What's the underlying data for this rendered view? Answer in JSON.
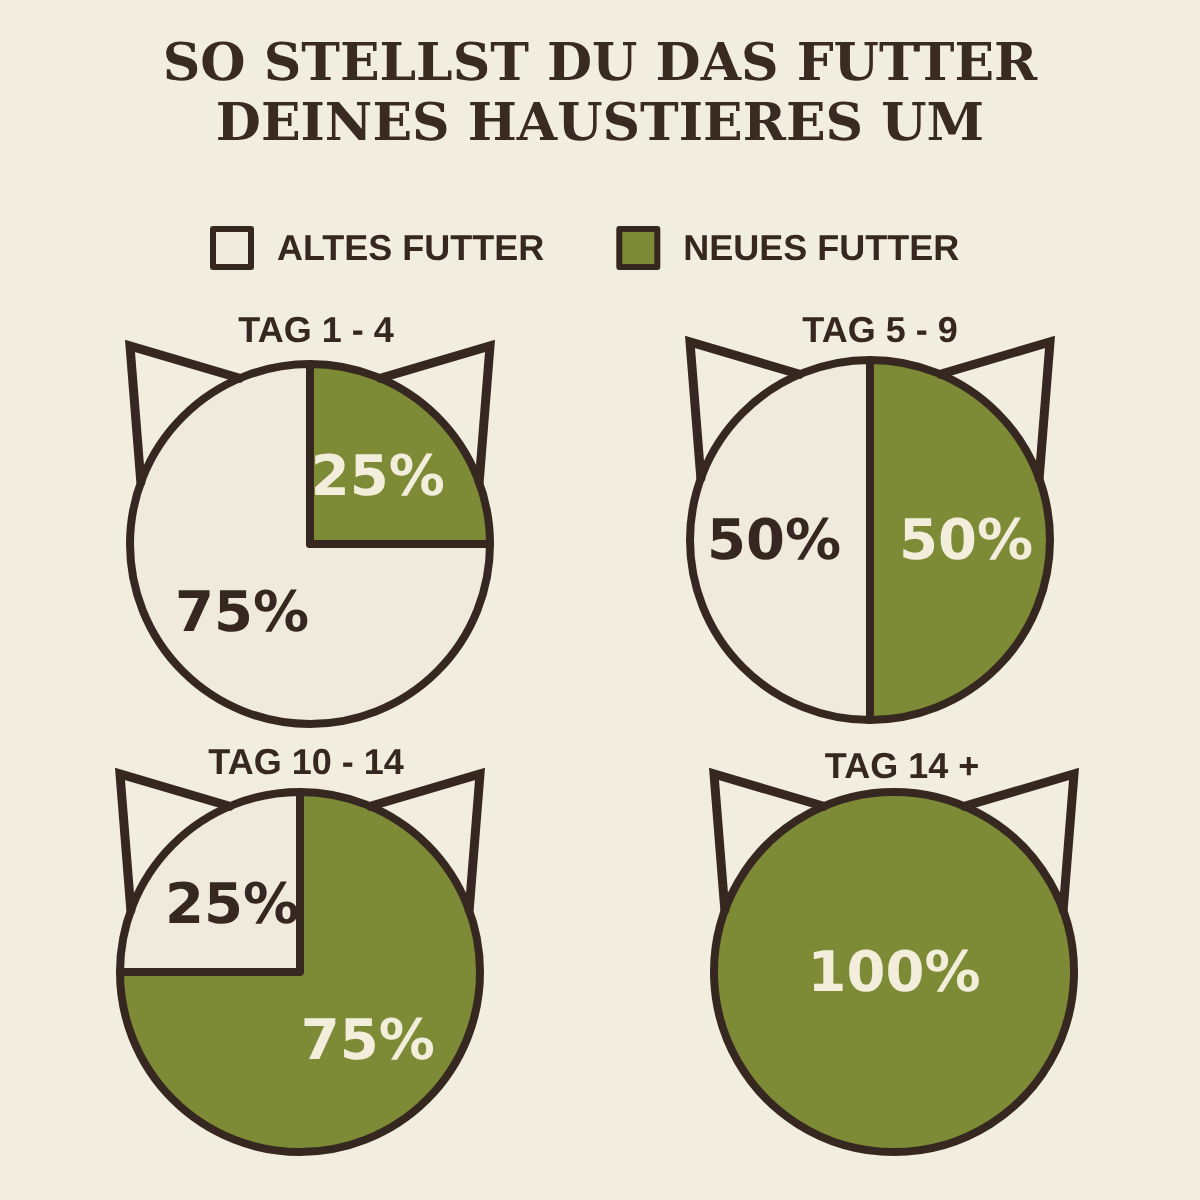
{
  "chart_data": [
    {
      "type": "other",
      "title": "SO STELLST DU DAS FUTTER DEINES HAUSTIERES UM"
    },
    {
      "type": "pie",
      "title": "TAG 1 - 4",
      "categories": [
        "ALTES FUTTER",
        "NEUES FUTTER"
      ],
      "values": [
        75,
        25
      ],
      "colors": [
        "#efeadb",
        "#7d8a36"
      ],
      "value_labels": [
        "75%",
        "25%"
      ],
      "legend": "top"
    },
    {
      "type": "pie",
      "title": "TAG 5 - 9",
      "categories": [
        null,
        null
      ],
      "values": [
        50,
        50
      ],
      "colors": [
        "#efeadb",
        "#7d8a36"
      ],
      "value_labels": [
        "50%",
        "50%"
      ]
    },
    {
      "type": "pie",
      "title": "TAG 10 - 14",
      "categories": [
        null,
        null
      ],
      "values": [
        25,
        75
      ],
      "colors": [
        "#efeadb",
        "#7d8a36"
      ],
      "value_labels": [
        "25%",
        "75%"
      ]
    },
    {
      "type": "pie",
      "title": "TAG 14 +",
      "categories": [
        null
      ],
      "values": [
        100
      ],
      "colors": [
        "#7d8a36"
      ],
      "value_labels": [
        "100%"
      ]
    }
  ]
}
